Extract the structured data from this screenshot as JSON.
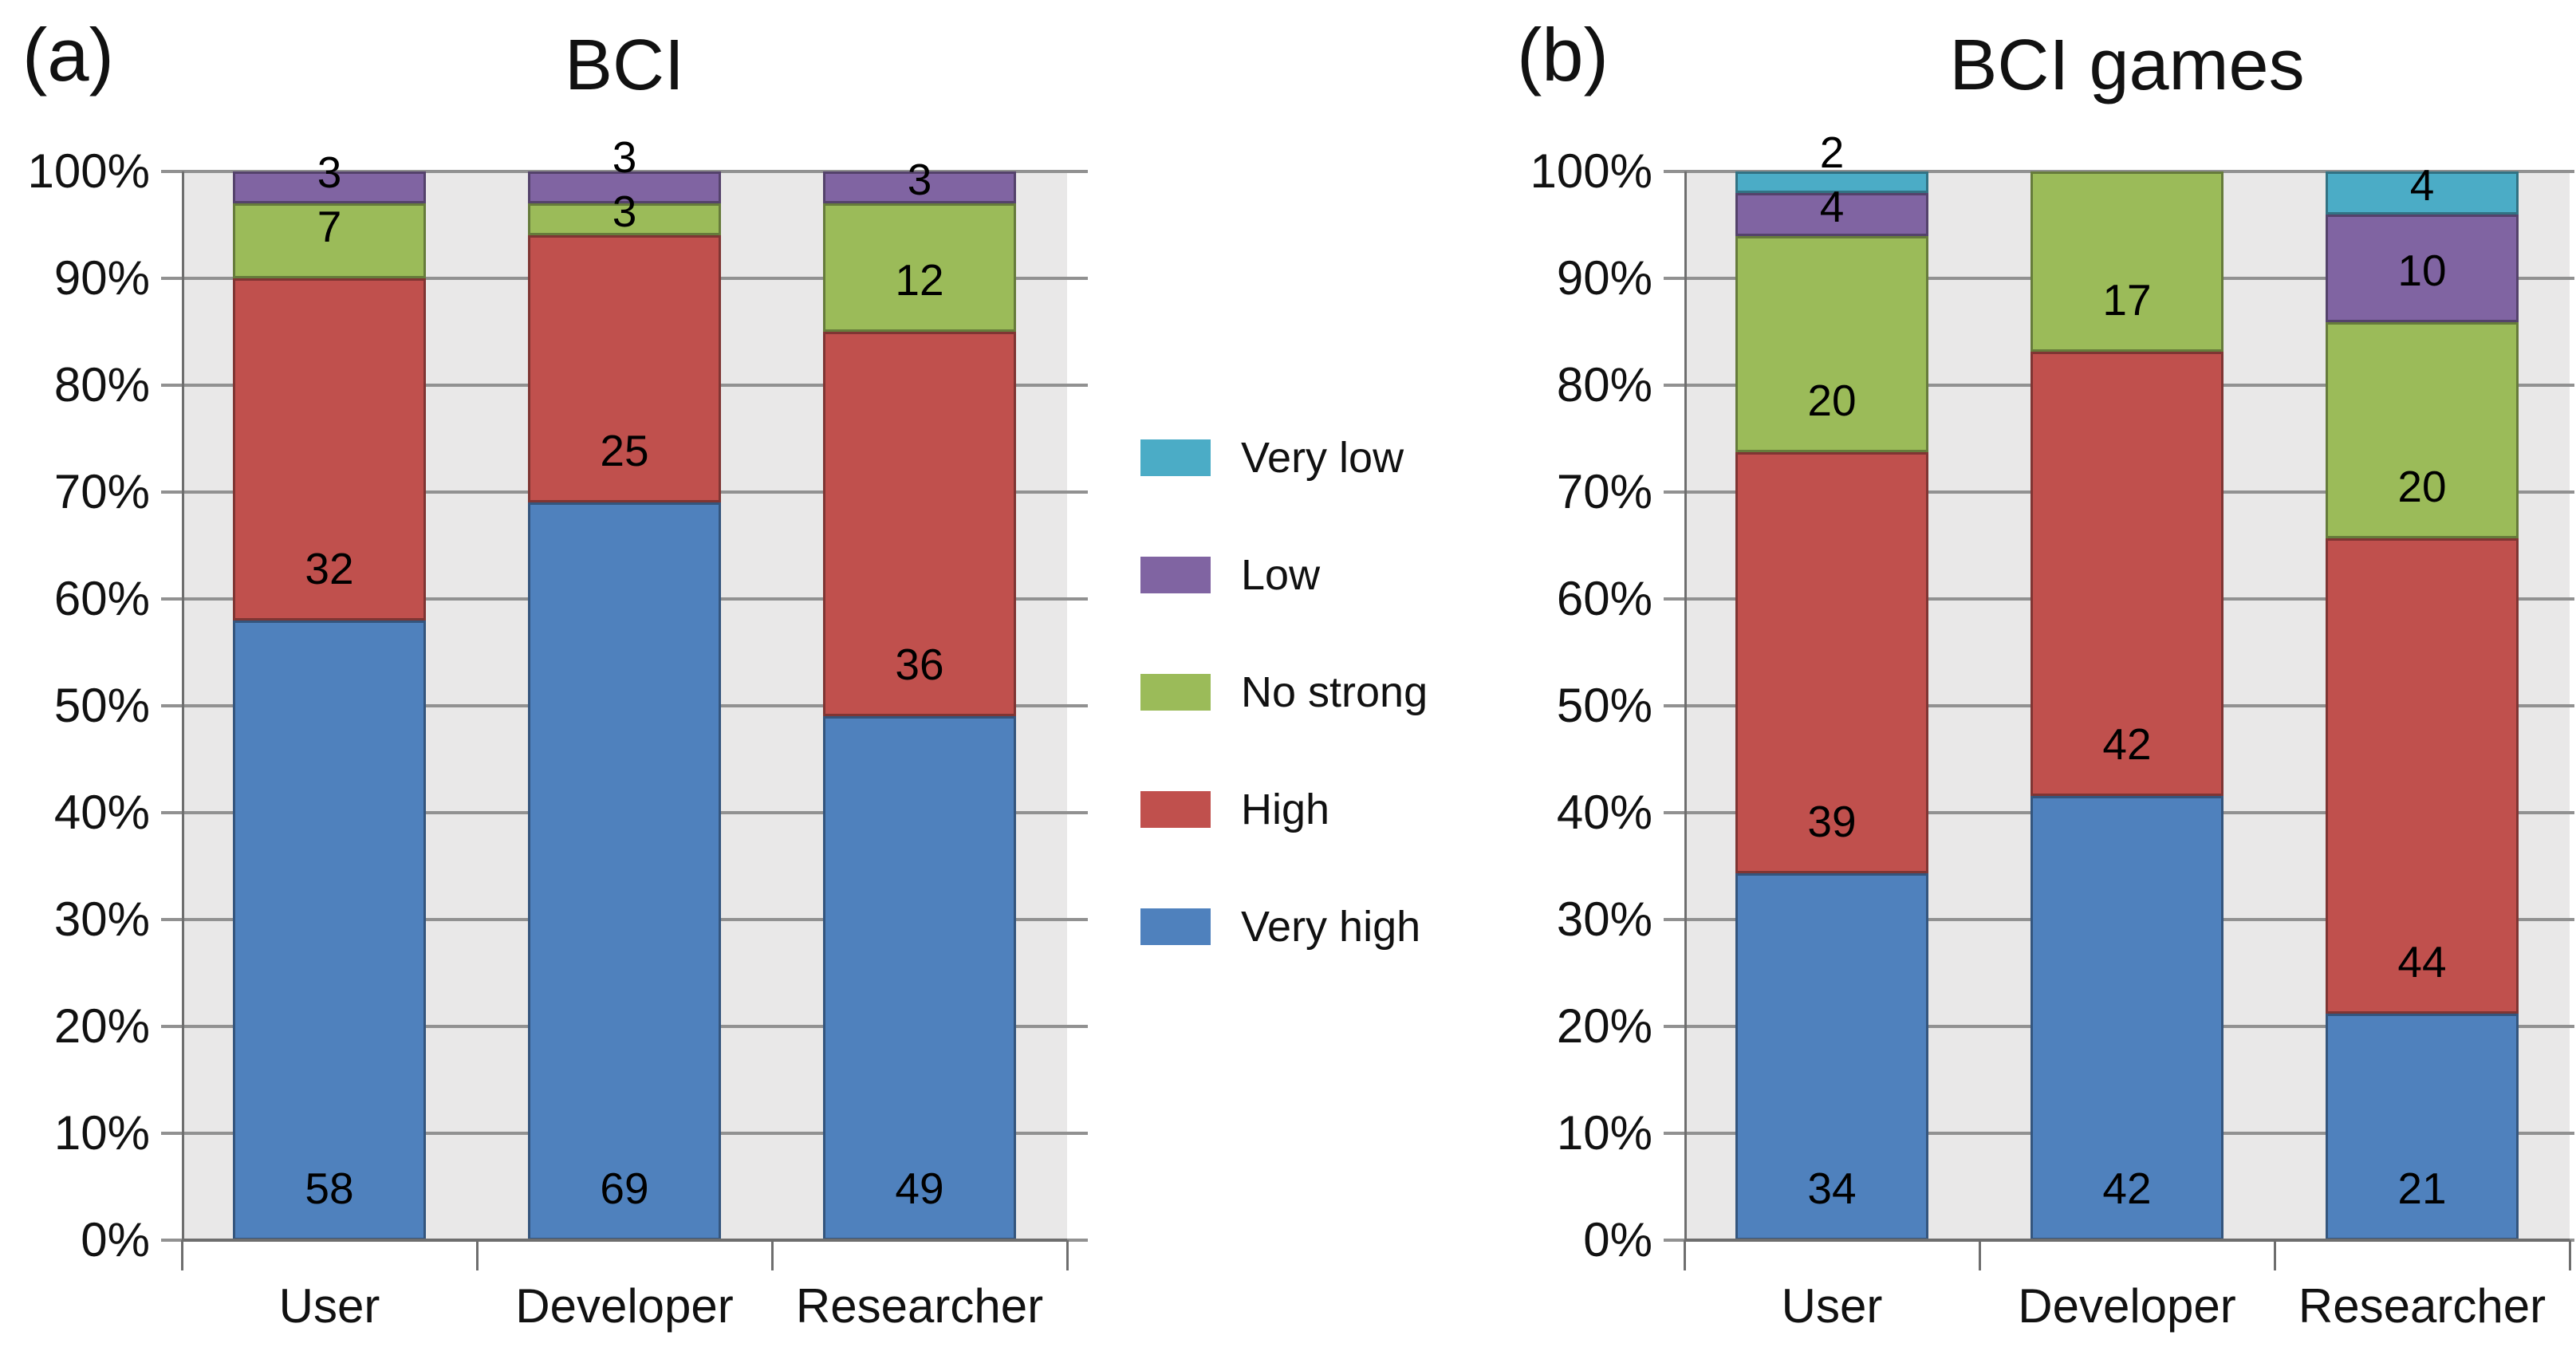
{
  "style": {
    "background": "#FFFFFF",
    "plot_bg": "#E9E8E8",
    "gridline_color": "#919191",
    "axis_color": "#6E6E6E",
    "text_color": "#111111"
  },
  "legend": {
    "position": "center-between-charts",
    "items": [
      {
        "label": "Very low",
        "color": "#4BACC6"
      },
      {
        "label": "Low",
        "color": "#8064A2"
      },
      {
        "label": "No strong",
        "color": "#9BBB59"
      },
      {
        "label": "High",
        "color": "#C0504D"
      },
      {
        "label": "Very high",
        "color": "#4F81BD"
      }
    ]
  },
  "chart_data": [
    {
      "type": "bar",
      "stacked": true,
      "percent_stacked": true,
      "panel_label": "(a)",
      "title": "BCI",
      "categories": [
        "User",
        "Developer",
        "Researcher"
      ],
      "series": [
        {
          "name": "Very high",
          "color": "#4F81BD",
          "values": [
            58,
            69,
            49
          ]
        },
        {
          "name": "High",
          "color": "#C0504D",
          "values": [
            32,
            25,
            36
          ]
        },
        {
          "name": "No strong",
          "color": "#9BBB59",
          "values": [
            7,
            3,
            12
          ]
        },
        {
          "name": "Low",
          "color": "#8064A2",
          "values": [
            3,
            3,
            3
          ]
        },
        {
          "name": "Very low",
          "color": "#4BACC6",
          "values": [
            0,
            0,
            0
          ]
        }
      ],
      "y_tick_labels": [
        "0%",
        "10%",
        "20%",
        "30%",
        "40%",
        "50%",
        "60%",
        "70%",
        "80%",
        "90%",
        "100%"
      ],
      "ylim": [
        0,
        100
      ],
      "grid": true,
      "data_labels": true
    },
    {
      "type": "bar",
      "stacked": true,
      "percent_stacked": true,
      "panel_label": "(b)",
      "title": "BCI games",
      "categories": [
        "User",
        "Developer",
        "Researcher"
      ],
      "series": [
        {
          "name": "Very high",
          "color": "#4F81BD",
          "values": [
            34,
            42,
            21
          ]
        },
        {
          "name": "High",
          "color": "#C0504D",
          "values": [
            39,
            42,
            44
          ]
        },
        {
          "name": "No strong",
          "color": "#9BBB59",
          "values": [
            20,
            17,
            20
          ]
        },
        {
          "name": "Low",
          "color": "#8064A2",
          "values": [
            4,
            0,
            10
          ]
        },
        {
          "name": "Very low",
          "color": "#4BACC6",
          "values": [
            2,
            0,
            4
          ]
        }
      ],
      "y_tick_labels": [
        "0%",
        "10%",
        "20%",
        "30%",
        "40%",
        "50%",
        "60%",
        "70%",
        "80%",
        "90%",
        "100%"
      ],
      "ylim": [
        0,
        100
      ],
      "grid": true,
      "data_labels": true
    }
  ]
}
